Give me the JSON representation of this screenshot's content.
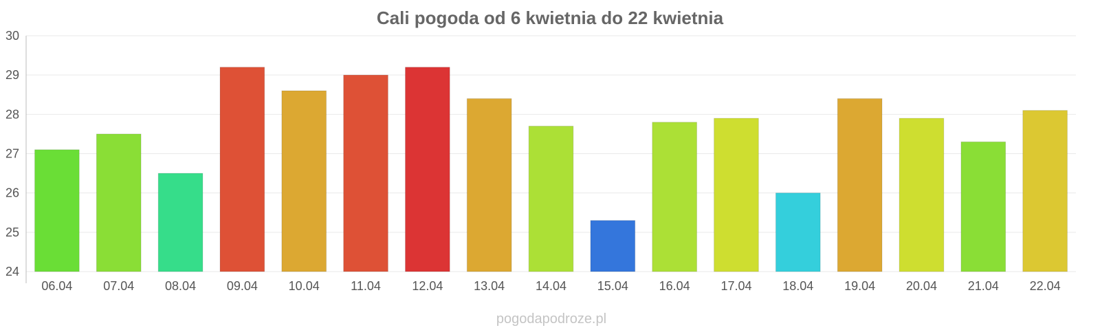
{
  "chart_data": {
    "type": "bar",
    "title": "Cali pogoda od 6 kwietnia do 22 kwietnia",
    "xlabel": "",
    "ylabel": "",
    "ylim": [
      24,
      30
    ],
    "yticks": [
      24,
      25,
      26,
      27,
      28,
      29,
      30
    ],
    "grid": true,
    "categories": [
      "06.04",
      "07.04",
      "08.04",
      "09.04",
      "10.04",
      "11.04",
      "12.04",
      "13.04",
      "14.04",
      "15.04",
      "16.04",
      "17.04",
      "18.04",
      "19.04",
      "20.04",
      "21.04",
      "22.04"
    ],
    "values": [
      27.1,
      27.5,
      26.5,
      29.2,
      28.6,
      29.0,
      29.2,
      28.4,
      27.7,
      25.3,
      27.8,
      27.9,
      26.0,
      28.4,
      27.9,
      27.3,
      28.1
    ],
    "colors": [
      "#6ade36",
      "#8ade36",
      "#36dd8a",
      "#de5136",
      "#dca832",
      "#de5136",
      "#dc3434",
      "#dca832",
      "#ace036",
      "#3476dc",
      "#ace036",
      "#cede30",
      "#34cfdc",
      "#dca832",
      "#cede30",
      "#8ade36",
      "#dcc832"
    ]
  },
  "watermark": "pogodapodroze.pl"
}
